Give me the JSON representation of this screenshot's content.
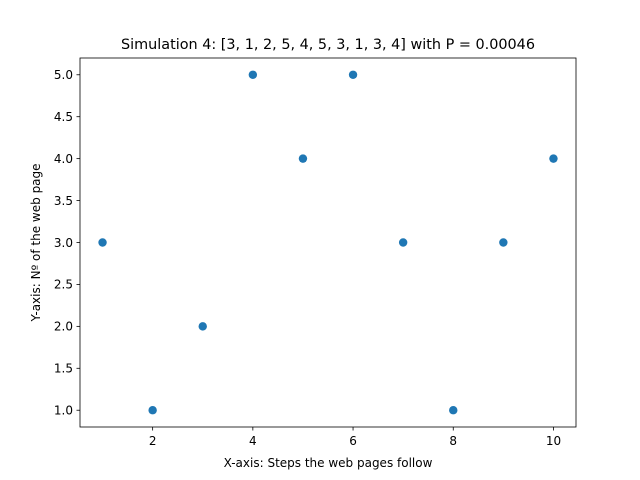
{
  "chart_data": {
    "type": "scatter",
    "title": "Simulation 4: [3, 1, 2, 5, 4, 5, 3, 1, 3, 4] with P = 0.00046",
    "xlabel": "X-axis: Steps the web pages follow",
    "ylabel": "Y-axis: Nº of the web page",
    "x": [
      1,
      2,
      3,
      4,
      5,
      6,
      7,
      8,
      9,
      10
    ],
    "y": [
      3,
      1,
      2,
      5,
      4,
      5,
      3,
      1,
      3,
      4
    ],
    "xlim": [
      0.55,
      10.45
    ],
    "ylim": [
      0.8,
      5.2
    ],
    "xticks": [
      2,
      4,
      6,
      8,
      10
    ],
    "xtick_labels": [
      "2",
      "4",
      "6",
      "8",
      "10"
    ],
    "yticks": [
      1.0,
      1.5,
      2.0,
      2.5,
      3.0,
      3.5,
      4.0,
      4.5,
      5.0
    ],
    "ytick_labels": [
      "1.0",
      "1.5",
      "2.0",
      "2.5",
      "3.0",
      "3.5",
      "4.0",
      "4.5",
      "5.0"
    ],
    "grid": false,
    "marker_color": "#1f77b4"
  }
}
